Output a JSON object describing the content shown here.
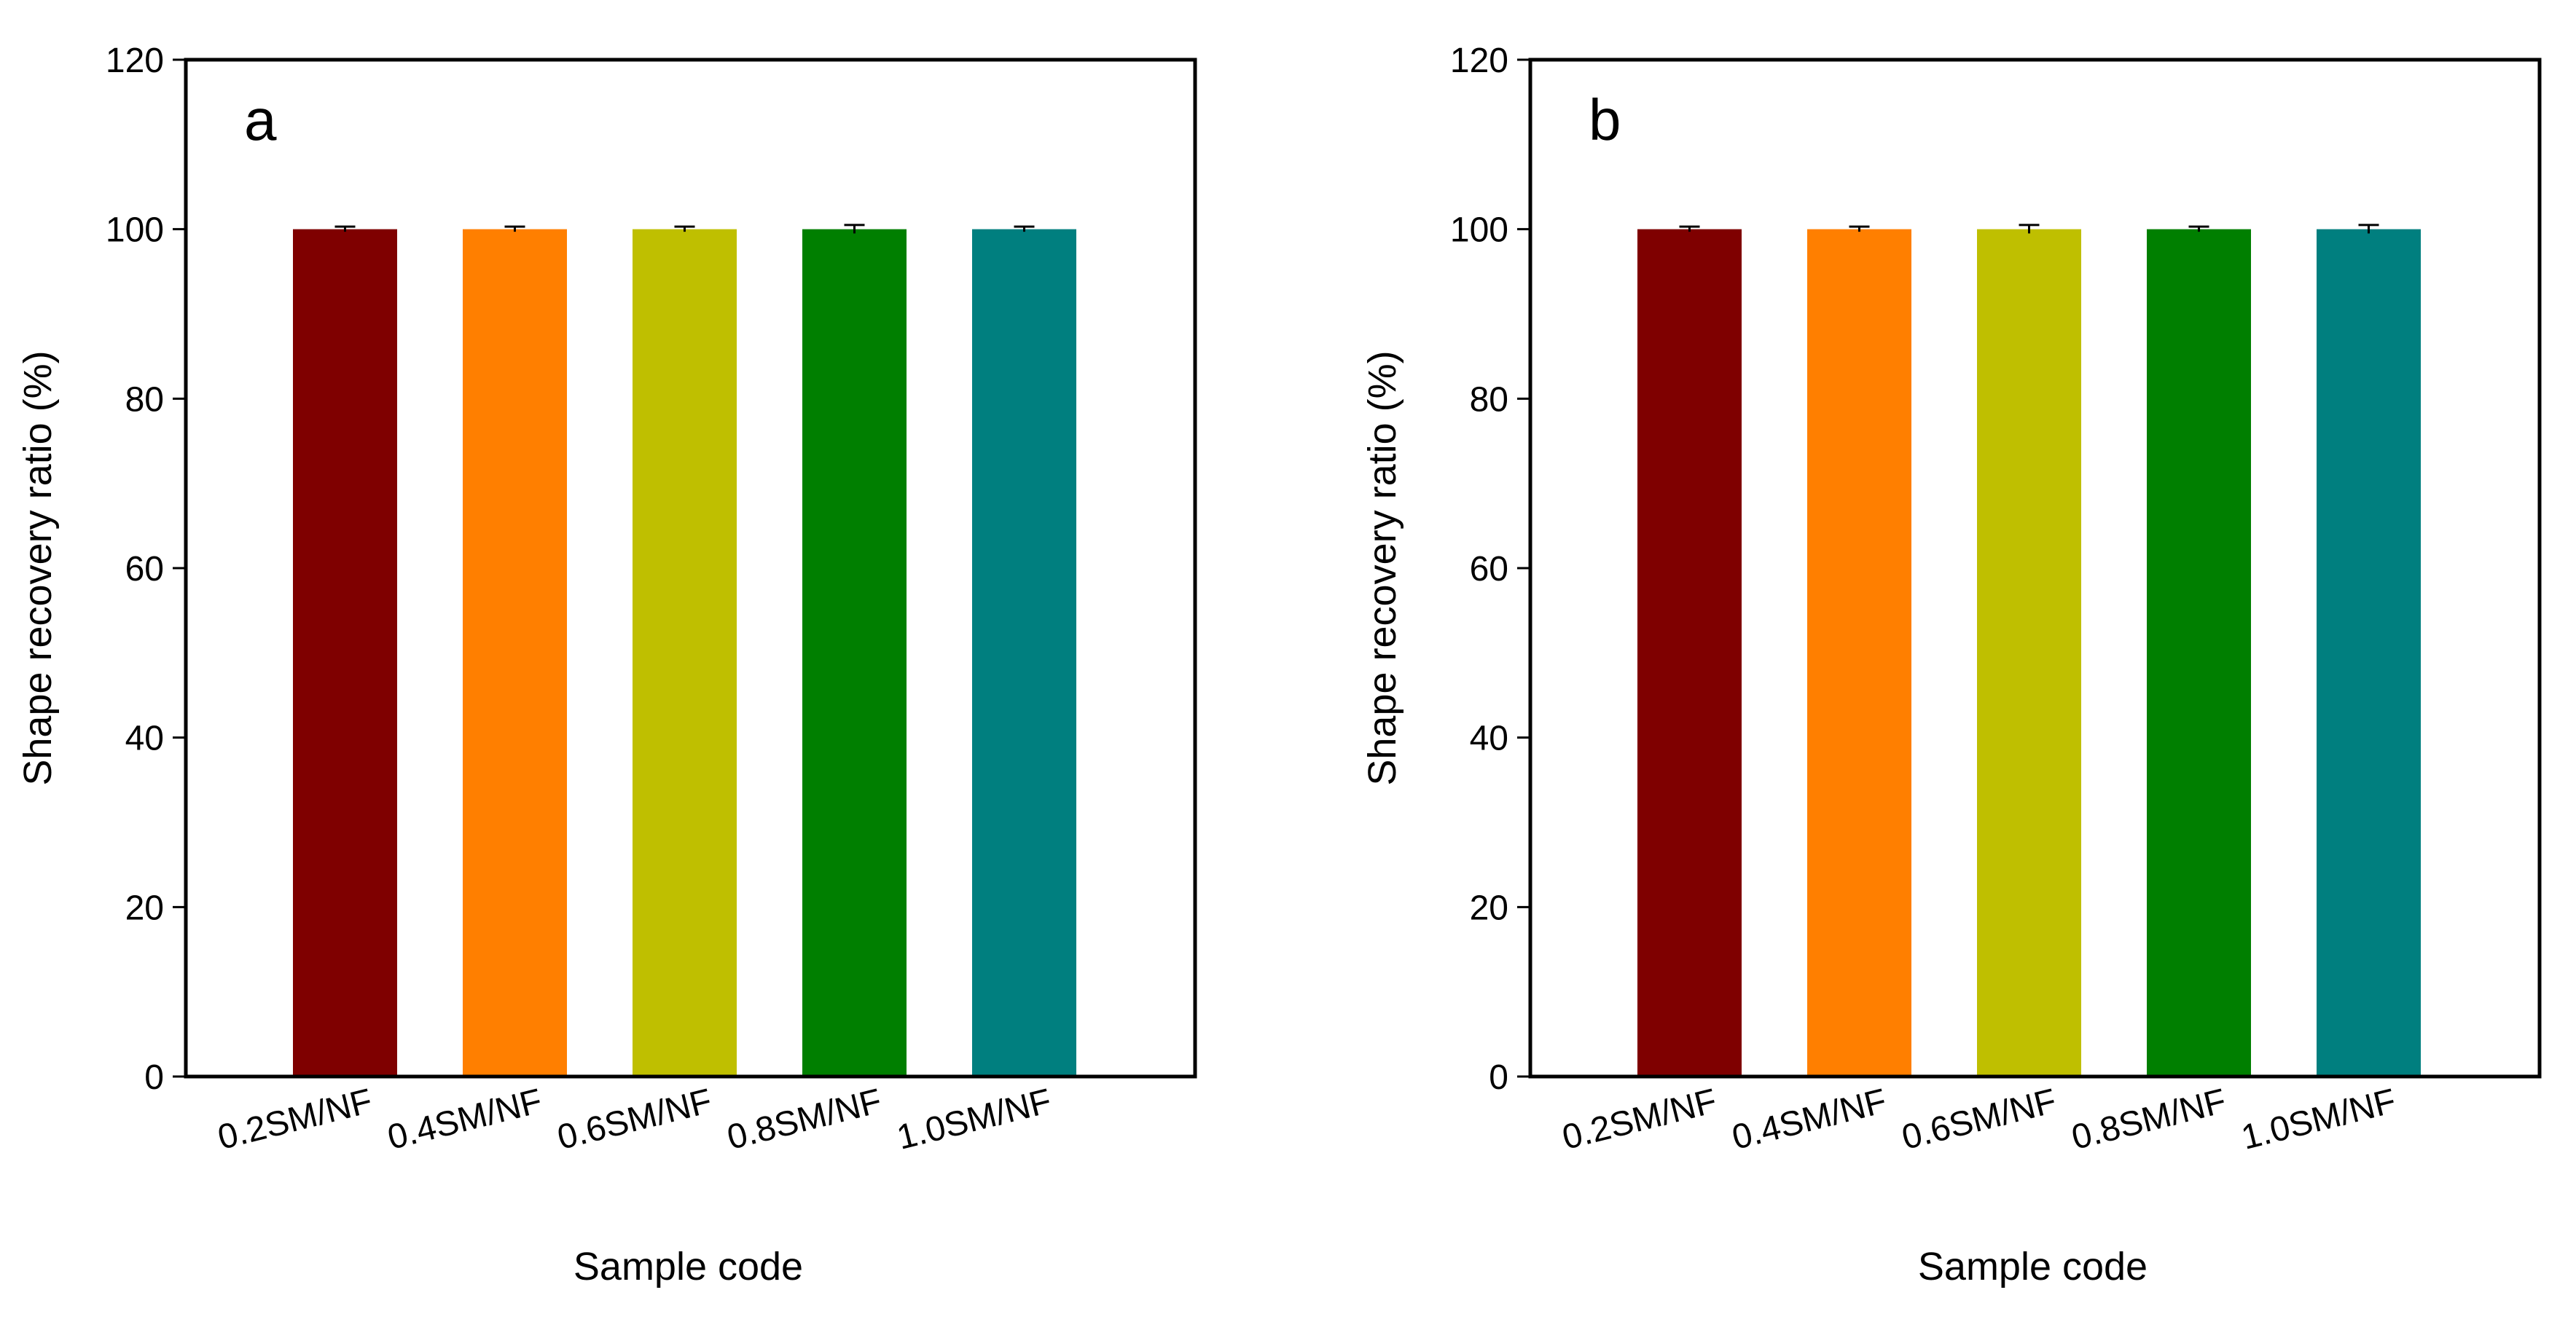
{
  "chart_data": [
    {
      "type": "bar",
      "panel_label": "a",
      "categories": [
        "0.2SM/NF",
        "0.4SM/NF",
        "0.6SM/NF",
        "0.8SM/NF",
        "1.0SM/NF"
      ],
      "values": [
        100,
        100,
        100,
        100,
        100
      ],
      "errors": [
        0.3,
        0.3,
        0.3,
        0.5,
        0.3
      ],
      "colors": [
        "#7f0000",
        "#ff7f00",
        "#bfbf00",
        "#007f00",
        "#007f7f"
      ],
      "xlabel": "Sample code",
      "ylabel": "Shape recovery ratio (%)",
      "ylim": [
        0,
        120
      ],
      "yticks": [
        0,
        20,
        40,
        60,
        80,
        100,
        120
      ],
      "grid": false
    },
    {
      "type": "bar",
      "panel_label": "b",
      "categories": [
        "0.2SM/NF",
        "0.4SM/NF",
        "0.6SM/NF",
        "0.8SM/NF",
        "1.0SM/NF"
      ],
      "values": [
        100,
        100,
        100,
        100,
        100
      ],
      "errors": [
        0.3,
        0.3,
        0.5,
        0.3,
        0.5
      ],
      "colors": [
        "#7f0000",
        "#ff7f00",
        "#bfbf00",
        "#007f00",
        "#007f7f"
      ],
      "xlabel": "Sample code",
      "ylabel": "Shape recovery ratio (%)",
      "ylim": [
        0,
        120
      ],
      "yticks": [
        0,
        20,
        40,
        60,
        80,
        100,
        120
      ],
      "grid": false
    }
  ]
}
